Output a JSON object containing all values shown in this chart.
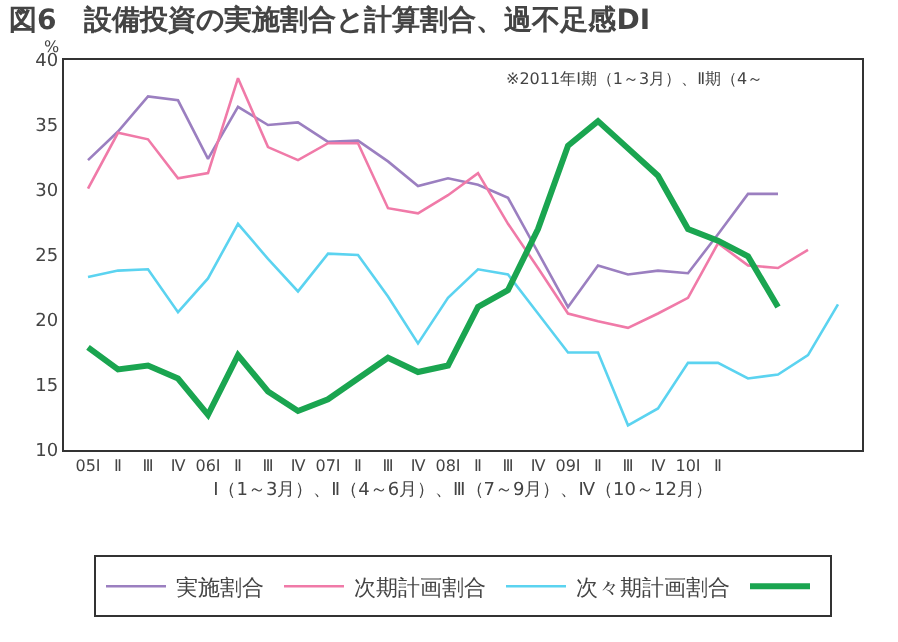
{
  "chart_data": {
    "type": "line",
    "title": "図6　設備投資の実施割合と計算割合、過不足感DI",
    "xlabel": "Ⅰ（1～3月）、Ⅱ（4～6月）、Ⅲ（7～9月）、Ⅳ（10～12月）",
    "ylabel": "%",
    "annotations": [
      "※2011年Ⅰ期（1～3月）、Ⅱ期（4～"
    ],
    "categories": [
      "05Ⅰ",
      "Ⅱ",
      "Ⅲ",
      "Ⅳ",
      "06Ⅰ",
      "Ⅱ",
      "Ⅲ",
      "Ⅳ",
      "07Ⅰ",
      "Ⅱ",
      "Ⅲ",
      "Ⅳ",
      "08Ⅰ",
      "Ⅱ",
      "Ⅲ",
      "Ⅳ",
      "09Ⅰ",
      "Ⅱ",
      "Ⅲ",
      "Ⅳ",
      "10Ⅰ",
      "Ⅱ",
      null,
      null,
      null,
      null
    ],
    "series": [
      {
        "name": "実施割合",
        "color": "#9b7fc0",
        "values": [
          32.3,
          34.5,
          37.2,
          36.9,
          32.4,
          36.4,
          35.0,
          35.2,
          33.7,
          33.8,
          32.2,
          30.3,
          30.9,
          30.4,
          29.4,
          25.2,
          21.0,
          24.2,
          23.5,
          23.8,
          23.6,
          26.6,
          29.7,
          29.7,
          null,
          null
        ]
      },
      {
        "name": "次期計画割合",
        "color": "#f07aa8",
        "values": [
          30.1,
          34.4,
          33.9,
          30.9,
          31.3,
          38.6,
          33.3,
          32.3,
          33.6,
          33.6,
          28.6,
          28.2,
          29.6,
          31.3,
          27.4,
          24.0,
          20.5,
          19.9,
          19.4,
          20.5,
          21.7,
          25.9,
          24.2,
          24.0,
          25.4,
          null
        ]
      },
      {
        "name": "次々期計画割合",
        "color": "#5bd3f0",
        "values": [
          23.3,
          23.8,
          23.9,
          20.6,
          23.2,
          27.4,
          24.7,
          22.2,
          25.1,
          25.0,
          21.8,
          18.2,
          21.7,
          23.9,
          23.5,
          20.5,
          17.5,
          17.5,
          11.9,
          13.2,
          16.7,
          16.7,
          15.5,
          15.8,
          17.3,
          21.2
        ]
      },
      {
        "color": "#1aa550",
        "values": [
          17.9,
          16.2,
          16.5,
          15.5,
          12.7,
          17.3,
          14.5,
          13.0,
          13.9,
          15.5,
          17.1,
          16.0,
          16.5,
          21.0,
          22.3,
          27.0,
          33.4,
          35.3,
          33.2,
          31.1,
          27.0,
          26.1,
          24.9,
          21.0,
          null,
          null
        ]
      }
    ],
    "ylim": [
      10,
      40
    ],
    "yticks": [
      10,
      15,
      20,
      25,
      30,
      35,
      40
    ],
    "grid": false,
    "legend": "bottom",
    "marker": "none",
    "line_style": "solid"
  }
}
